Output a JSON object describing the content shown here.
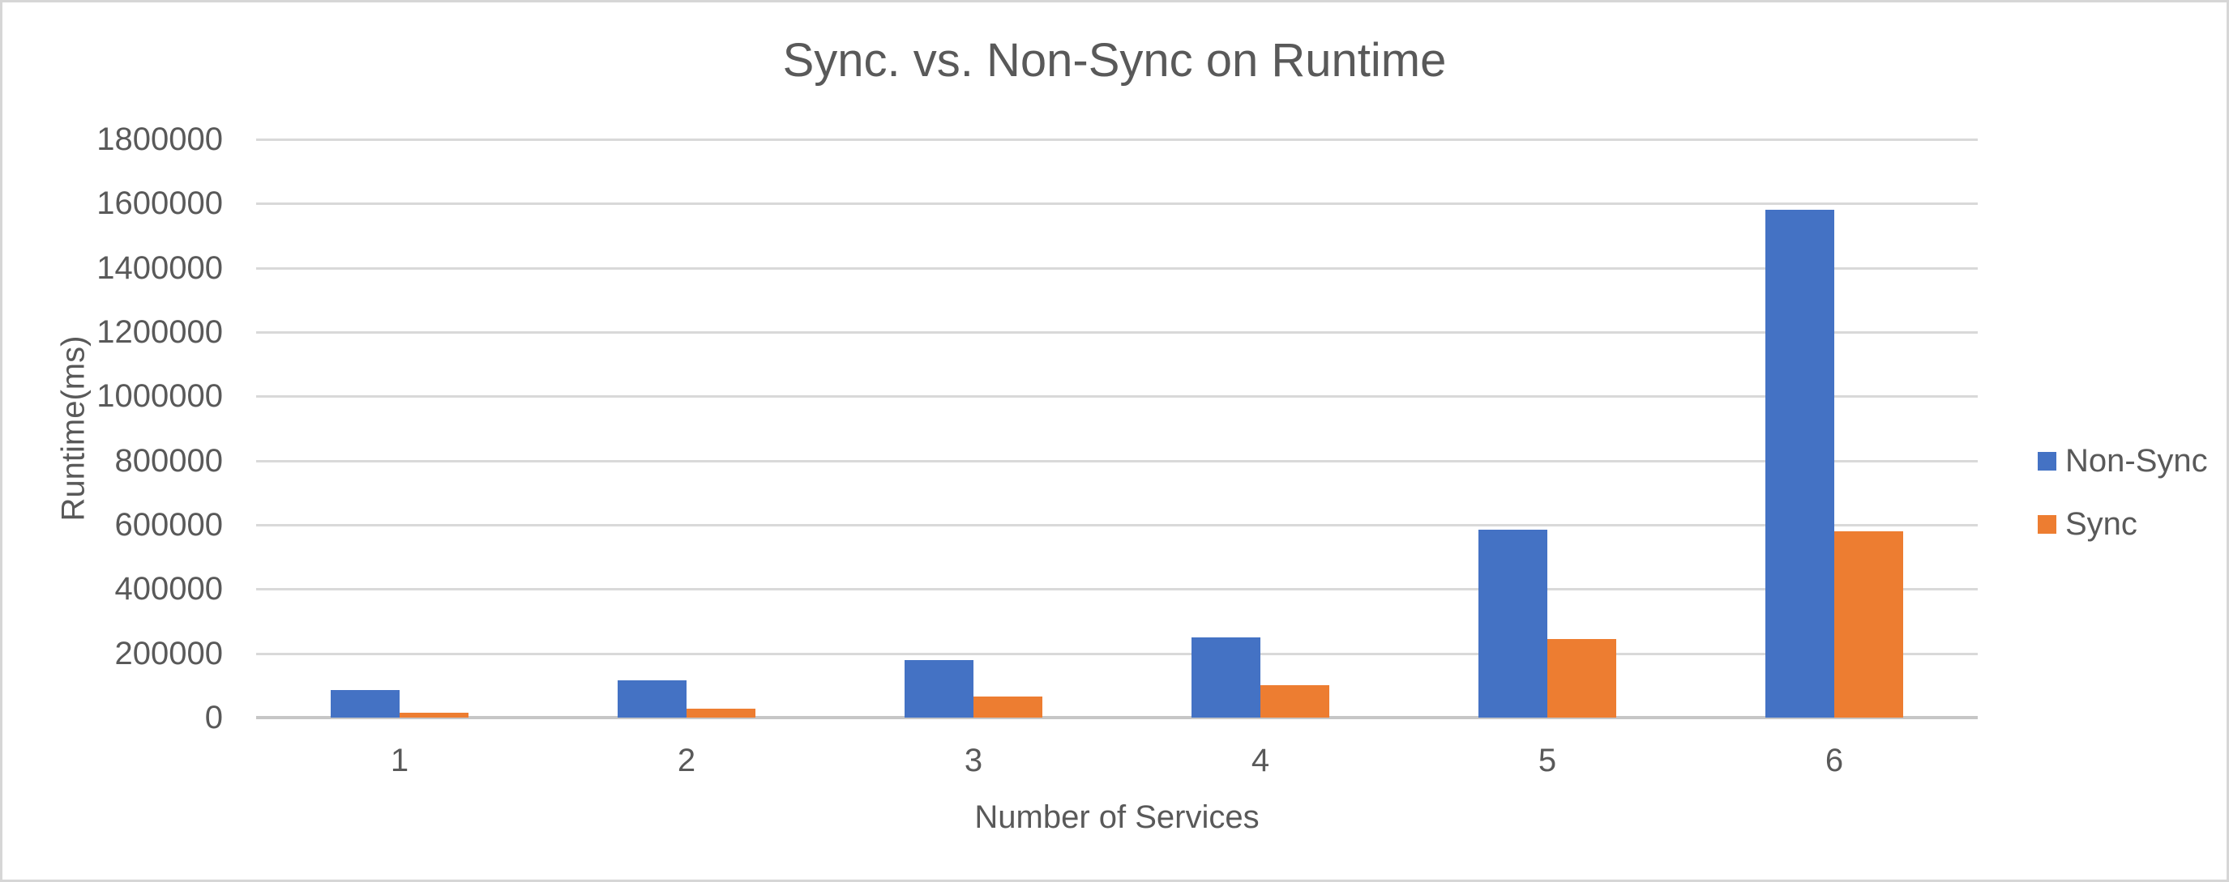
{
  "chart_data": {
    "type": "bar",
    "title": "Sync. vs. Non-Sync on Runtime",
    "xlabel": "Number of Services",
    "ylabel": "Runtime(ms)",
    "categories": [
      "1",
      "2",
      "3",
      "4",
      "5",
      "6"
    ],
    "series": [
      {
        "name": "Non-Sync",
        "color": "#4472C4",
        "values": [
          85000,
          115000,
          180000,
          250000,
          585000,
          1580000
        ]
      },
      {
        "name": "Sync",
        "color": "#ED7D31",
        "values": [
          15000,
          28000,
          65000,
          100000,
          245000,
          580000
        ]
      }
    ],
    "ylim": [
      0,
      1800000
    ],
    "ytick_step": 200000,
    "ytick_labels": [
      "0",
      "200000",
      "400000",
      "600000",
      "800000",
      "1000000",
      "1200000",
      "1400000",
      "1600000",
      "1800000"
    ],
    "grid": true,
    "legend_position": "right"
  },
  "colors": {
    "accent_blue": "#4472C4",
    "accent_orange": "#ED7D31",
    "text": "#595959",
    "gridline": "#d9d9d9",
    "axis_line": "#c6c6c6",
    "frame_border": "#d6d6d6",
    "background": "#ffffff"
  }
}
